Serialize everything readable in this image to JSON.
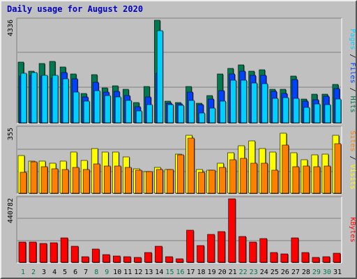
{
  "chart_data": [
    {
      "type": "bar",
      "title": "Daily usage for August 2020",
      "categories": [
        "1",
        "2",
        "3",
        "4",
        "5",
        "6",
        "7",
        "8",
        "9",
        "10",
        "11",
        "12",
        "13",
        "14",
        "15",
        "16",
        "17",
        "18",
        "19",
        "20",
        "21",
        "22",
        "23",
        "24",
        "25",
        "26",
        "27",
        "28",
        "29",
        "30",
        "31"
      ],
      "weekend_days": [
        "1",
        "2",
        "8",
        "9",
        "15",
        "16",
        "22",
        "23",
        "29",
        "30"
      ],
      "ymax_label": "4336",
      "ylim": [
        0,
        4336
      ],
      "right_label": [
        "Pages",
        "Files",
        "Hits"
      ],
      "series": [
        {
          "name": "Hits",
          "color": "#007850",
          "values": [
            2560,
            2180,
            2520,
            2600,
            2360,
            2060,
            1250,
            2030,
            1480,
            1560,
            1420,
            850,
            1520,
            4336,
            900,
            860,
            1520,
            840,
            1140,
            2070,
            2300,
            2460,
            2170,
            2250,
            1430,
            1420,
            1990,
            1010,
            1200,
            1210,
            1610
          ]
        },
        {
          "name": "Files",
          "color": "#0040ff",
          "values": [
            1990,
            2020,
            1980,
            1900,
            2120,
            1850,
            1080,
            1720,
            1300,
            1330,
            1150,
            680,
            1100,
            2080,
            830,
            790,
            1300,
            760,
            990,
            1360,
            2060,
            2170,
            2000,
            2000,
            1340,
            1230,
            1830,
            910,
            970,
            1120,
            1460
          ]
        },
        {
          "name": "Pages",
          "color": "#00d0ff",
          "values": [
            2100,
            2120,
            2000,
            2020,
            1850,
            1300,
            900,
            1370,
            1140,
            1080,
            940,
            510,
            760,
            3900,
            780,
            740,
            950,
            400,
            630,
            920,
            1790,
            1800,
            1690,
            1640,
            1020,
            1060,
            1030,
            650,
            800,
            780,
            1000
          ]
        }
      ]
    },
    {
      "type": "bar",
      "ymax_label": "355",
      "ylim": [
        0,
        355
      ],
      "right_label": [
        "Sites",
        "Visits"
      ],
      "series": [
        {
          "name": "Visits",
          "color": "#ffff00",
          "values": [
            205,
            175,
            175,
            165,
            175,
            225,
            180,
            245,
            225,
            225,
            200,
            135,
            120,
            140,
            130,
            215,
            315,
            130,
            125,
            165,
            220,
            260,
            285,
            245,
            225,
            330,
            220,
            185,
            210,
            215,
            315
          ]
        },
        {
          "name": "Sites",
          "color": "#ff8000",
          "values": [
            115,
            170,
            145,
            135,
            130,
            140,
            130,
            160,
            150,
            150,
            140,
            125,
            120,
            130,
            130,
            210,
            300,
            115,
            125,
            140,
            185,
            190,
            165,
            165,
            125,
            265,
            145,
            150,
            145,
            150,
            270
          ]
        }
      ]
    },
    {
      "type": "bar",
      "ymax_label": "440782",
      "ylim": [
        0,
        440782
      ],
      "right_label": [
        "KBytes"
      ],
      "series": [
        {
          "name": "KBytes",
          "color": "#ff0000",
          "values": [
            141000,
            141000,
            132000,
            135000,
            169000,
            111000,
            40000,
            93000,
            51000,
            44000,
            40000,
            34000,
            70000,
            111000,
            38000,
            22000,
            224000,
            115000,
            193000,
            211000,
            440782,
            177000,
            141000,
            167000,
            68000,
            60000,
            171000,
            69000,
            35000,
            41000,
            61000
          ]
        }
      ]
    }
  ]
}
